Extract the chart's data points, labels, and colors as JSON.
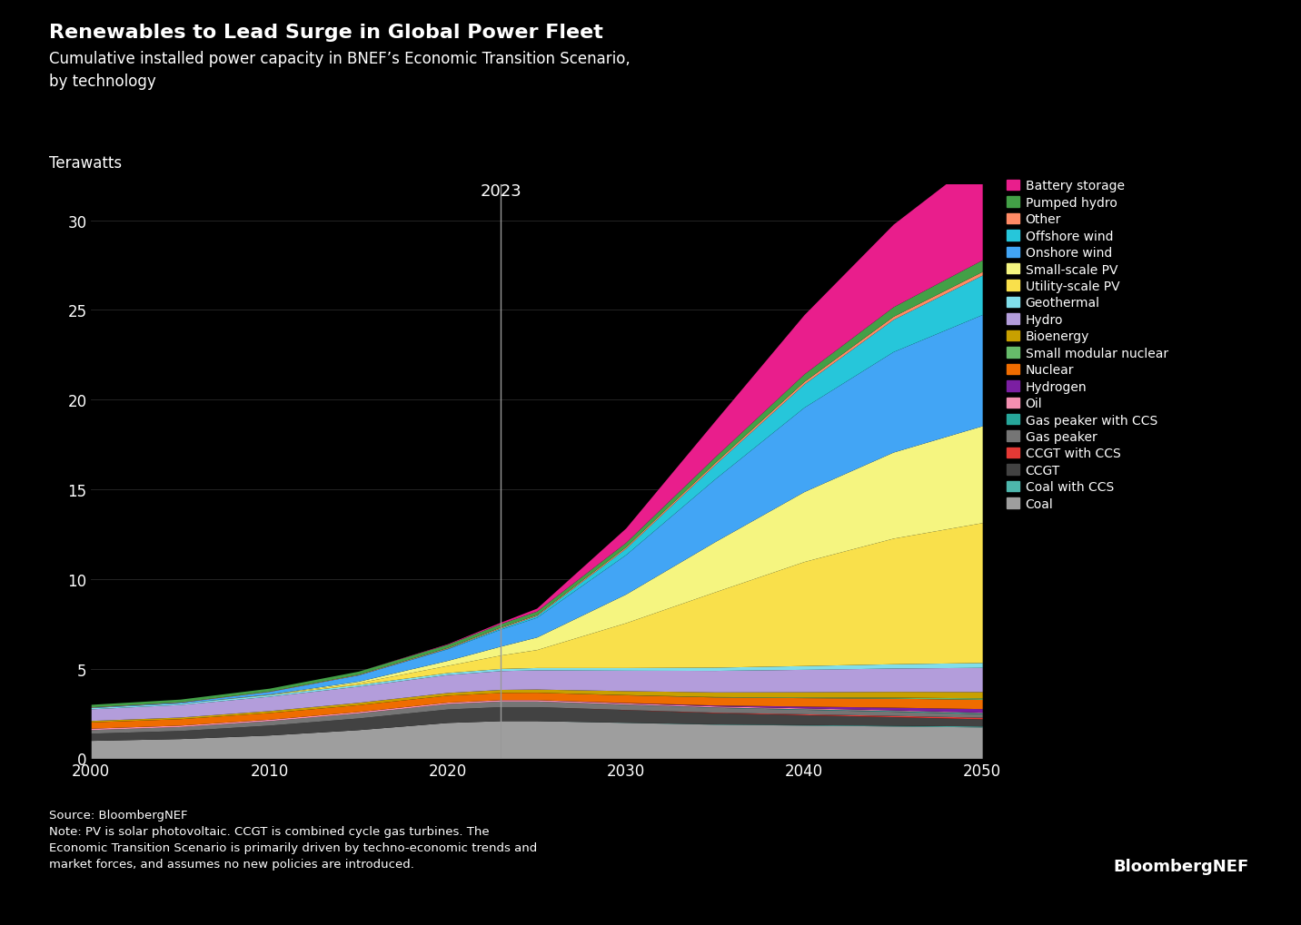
{
  "title_bold": "Renewables to Lead Surge in Global Power Fleet",
  "title_sub": "Cumulative installed power capacity in BNEF’s Economic Transition Scenario,\nby technology",
  "ylabel": "Terawatts",
  "source_text": "Source: BloombergNEF\nNote: PV is solar photovoltaic. CCGT is combined cycle gas turbines. The\nEconomic Transition Scenario is primarily driven by techno-economic trends and\nmarket forces, and assumes no new policies are introduced.",
  "bloomberg_label": "BloombergNEF",
  "annotation_2023": "2023",
  "xlim": [
    2000,
    2050
  ],
  "ylim": [
    0,
    32
  ],
  "yticks": [
    0,
    5,
    10,
    15,
    20,
    25,
    30
  ],
  "xticks": [
    2000,
    2010,
    2020,
    2030,
    2040,
    2050
  ],
  "background_color": "#000000",
  "text_color": "#ffffff",
  "grid_color": "#666666",
  "vline_x": 2023,
  "vline_color": "#999999",
  "technologies": [
    "Coal",
    "Coal with CCS",
    "CCGT",
    "CCGT with CCS",
    "Gas peaker",
    "Gas peaker with CCS",
    "Oil",
    "Hydrogen",
    "Nuclear",
    "Small modular nuclear",
    "Bioenergy",
    "Hydro",
    "Geothermal",
    "Utility-scale PV",
    "Small-scale PV",
    "Onshore wind",
    "Offshore wind",
    "Other",
    "Pumped hydro",
    "Battery storage"
  ],
  "colors": [
    "#9e9e9e",
    "#4db6ac",
    "#424242",
    "#e53935",
    "#757575",
    "#26a69a",
    "#f48fb1",
    "#7b1fa2",
    "#ef6c00",
    "#66bb6a",
    "#c8a000",
    "#b39ddb",
    "#80deea",
    "#f9e04b",
    "#f5f580",
    "#42a5f5",
    "#26c6da",
    "#ff8a65",
    "#43a047",
    "#e91e8c"
  ],
  "years": [
    2000,
    2005,
    2010,
    2015,
    2020,
    2023,
    2025,
    2030,
    2035,
    2040,
    2045,
    2050
  ],
  "data": {
    "Coal": [
      1.0,
      1.1,
      1.3,
      1.6,
      2.0,
      2.1,
      2.1,
      2.0,
      1.9,
      1.85,
      1.8,
      1.75
    ],
    "Coal with CCS": [
      0.0,
      0.0,
      0.0,
      0.0,
      0.0,
      0.0,
      0.0,
      0.01,
      0.02,
      0.03,
      0.04,
      0.05
    ],
    "CCGT": [
      0.4,
      0.45,
      0.55,
      0.65,
      0.75,
      0.78,
      0.78,
      0.7,
      0.62,
      0.55,
      0.48,
      0.4
    ],
    "CCGT with CCS": [
      0.0,
      0.0,
      0.0,
      0.0,
      0.0,
      0.0,
      0.0,
      0.01,
      0.03,
      0.05,
      0.07,
      0.09
    ],
    "Gas peaker": [
      0.2,
      0.22,
      0.25,
      0.28,
      0.3,
      0.31,
      0.31,
      0.29,
      0.27,
      0.25,
      0.23,
      0.2
    ],
    "Gas peaker with CCS": [
      0.0,
      0.0,
      0.0,
      0.0,
      0.0,
      0.0,
      0.0,
      0.01,
      0.02,
      0.03,
      0.04,
      0.05
    ],
    "Oil": [
      0.08,
      0.08,
      0.08,
      0.08,
      0.08,
      0.08,
      0.08,
      0.07,
      0.06,
      0.05,
      0.04,
      0.03
    ],
    "Hydrogen": [
      0.0,
      0.0,
      0.0,
      0.0,
      0.0,
      0.0,
      0.0,
      0.02,
      0.05,
      0.1,
      0.15,
      0.2
    ],
    "Nuclear": [
      0.35,
      0.36,
      0.37,
      0.38,
      0.39,
      0.4,
      0.41,
      0.43,
      0.45,
      0.47,
      0.5,
      0.52
    ],
    "Small modular nuclear": [
      0.0,
      0.0,
      0.0,
      0.0,
      0.0,
      0.0,
      0.0,
      0.01,
      0.02,
      0.04,
      0.06,
      0.08
    ],
    "Bioenergy": [
      0.08,
      0.09,
      0.11,
      0.13,
      0.15,
      0.17,
      0.18,
      0.22,
      0.26,
      0.29,
      0.32,
      0.35
    ],
    "Hydro": [
      0.65,
      0.7,
      0.8,
      0.9,
      1.0,
      1.05,
      1.07,
      1.14,
      1.2,
      1.25,
      1.3,
      1.35
    ],
    "Geothermal": [
      0.07,
      0.08,
      0.09,
      0.1,
      0.11,
      0.12,
      0.13,
      0.15,
      0.18,
      0.21,
      0.24,
      0.27
    ],
    "Utility-scale PV": [
      0.0,
      0.0,
      0.02,
      0.1,
      0.4,
      0.75,
      1.0,
      2.5,
      4.2,
      5.8,
      7.0,
      7.8
    ],
    "Small-scale PV": [
      0.0,
      0.0,
      0.01,
      0.08,
      0.28,
      0.5,
      0.7,
      1.6,
      2.8,
      3.9,
      4.8,
      5.4
    ],
    "Onshore wind": [
      0.02,
      0.05,
      0.15,
      0.35,
      0.65,
      0.95,
      1.1,
      2.2,
      3.5,
      4.7,
      5.6,
      6.2
    ],
    "Offshore wind": [
      0.0,
      0.0,
      0.0,
      0.01,
      0.03,
      0.07,
      0.1,
      0.35,
      0.8,
      1.3,
      1.8,
      2.2
    ],
    "Other": [
      0.02,
      0.02,
      0.02,
      0.03,
      0.04,
      0.05,
      0.05,
      0.08,
      0.11,
      0.14,
      0.17,
      0.2
    ],
    "Pumped hydro": [
      0.14,
      0.15,
      0.16,
      0.17,
      0.18,
      0.19,
      0.2,
      0.25,
      0.32,
      0.42,
      0.53,
      0.65
    ],
    "Battery storage": [
      0.0,
      0.0,
      0.0,
      0.0,
      0.03,
      0.08,
      0.16,
      0.8,
      2.0,
      3.3,
      4.6,
      5.8
    ]
  }
}
